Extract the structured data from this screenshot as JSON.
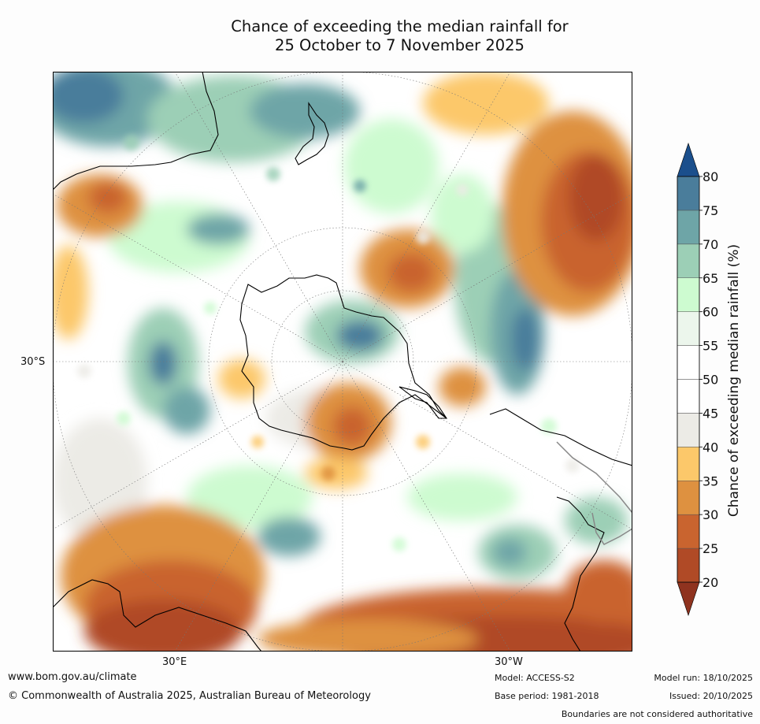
{
  "title_line1": "Chance of exceeding the median rainfall for",
  "title_line2": "25 October to 7 November 2025",
  "map": {
    "lat_label": "30°S",
    "lon_left": "30°E",
    "lon_right": "30°W"
  },
  "colorbar": {
    "title": "Chance of exceeding median rainfall (%)",
    "ticks": [
      "20",
      "25",
      "30",
      "35",
      "40",
      "45",
      "50",
      "55",
      "60",
      "65",
      "70",
      "75",
      "80"
    ],
    "colors": [
      "#b04a26",
      "#c9642f",
      "#de9140",
      "#fcc86a",
      "#ecebe6",
      "#ffffff",
      "#ffffff",
      "#ecf6ec",
      "#cdfbd0",
      "#9ccfb6",
      "#6ea5a7",
      "#4a7d9b"
    ],
    "under_color": "#8f331f",
    "over_color": "#1b4f8c"
  },
  "footer": {
    "url": "www.bom.gov.au/climate",
    "copyright": "© Commonwealth of Australia 2025, Australian Bureau of Meteorology",
    "model": "Model: ACCESS-S2",
    "base_period": "Base period: 1981-2018",
    "model_run": "Model run: 18/10/2025",
    "issued": "Issued: 20/10/2025",
    "disclaimer": "Boundaries are not considered authoritative"
  }
}
